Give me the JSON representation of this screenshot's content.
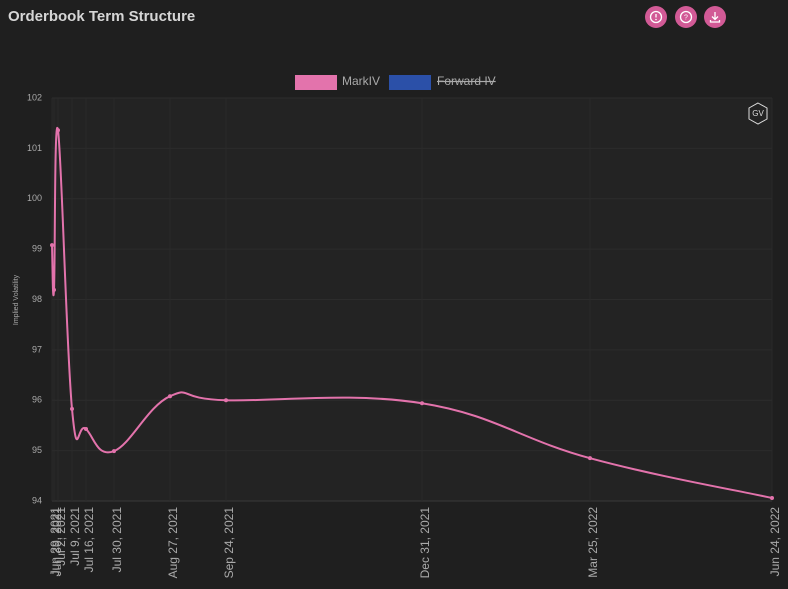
{
  "header": {
    "title": "Orderbook Term Structure"
  },
  "badge": "GV",
  "chart_data": {
    "type": "line",
    "y_label": "Implied Volatility",
    "x": [
      "Jun 29, 2021",
      "Jun 30, 2021",
      "Jul 2, 2021",
      "Jul 9, 2021",
      "Jul 16, 2021",
      "Jul 30, 2021",
      "Aug 27, 2021",
      "Sep 24, 2021",
      "Dec 31, 2021",
      "Mar 25, 2022",
      "Jun 24, 2022"
    ],
    "xlim": [
      "Jun 29, 2021",
      "Jun 24, 2022"
    ],
    "series": [
      {
        "name": "MarkIV",
        "color": "#e373ac",
        "values": [
          99.08,
          98.19,
          101.36,
          95.83,
          95.43,
          94.99,
          96.08,
          96.0,
          95.94,
          94.85,
          94.06
        ]
      },
      {
        "name": "Forward IV",
        "color": "#2b50a8",
        "hidden": true
      }
    ],
    "ylim": [
      94,
      102
    ],
    "yticks": [
      94,
      95,
      96,
      97,
      98,
      99,
      100,
      101,
      102
    ],
    "grid": true
  }
}
